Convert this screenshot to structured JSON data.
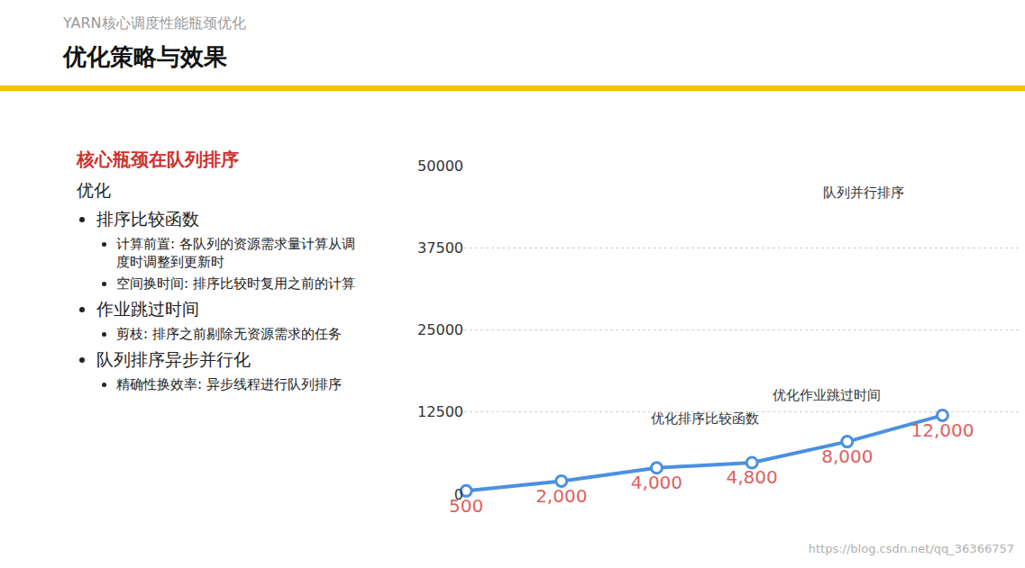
{
  "slide": {
    "header": "YARN核心调度性能瓶颈优化",
    "title": "优化策略与效果",
    "heading": "核心瓶颈在队列排序",
    "subheading": "优化",
    "bullets": [
      {
        "text": "排序比较函数",
        "subitems": [
          "计算前置: 各队列的资源需求量计算从调度时调整到更新时",
          "空间换时间: 排序比较时复用之前的计算"
        ]
      },
      {
        "text": "作业跳过时间",
        "subitems": [
          "剪枝: 排序之前剔除无资源需求的任务"
        ]
      },
      {
        "text": "队列排序异步并行化",
        "subitems": [
          "精确性换效率: 异步线程进行队列排序"
        ]
      }
    ],
    "watermark": "https://blog.csdn.net/qq_36366757"
  },
  "chart_data": {
    "type": "line",
    "categories": [
      null,
      null,
      null,
      null,
      null,
      null
    ],
    "values": [
      500,
      2000,
      4000,
      4800,
      8000,
      12000
    ],
    "value_labels": [
      "500",
      "2,000",
      "4,000",
      "4,800",
      "8,000",
      "12,000"
    ],
    "color": "#4a90e2",
    "ylim": [
      0,
      50000
    ],
    "yticks": [
      0,
      12500,
      25000,
      37500,
      50000
    ],
    "grid": true,
    "data_labels": true,
    "tick_labels": "y",
    "marker": "circle",
    "line_style": "solid",
    "annotations": [
      "优化排序比较函数",
      "优化作业跳过时间",
      "队列并行排序"
    ]
  }
}
